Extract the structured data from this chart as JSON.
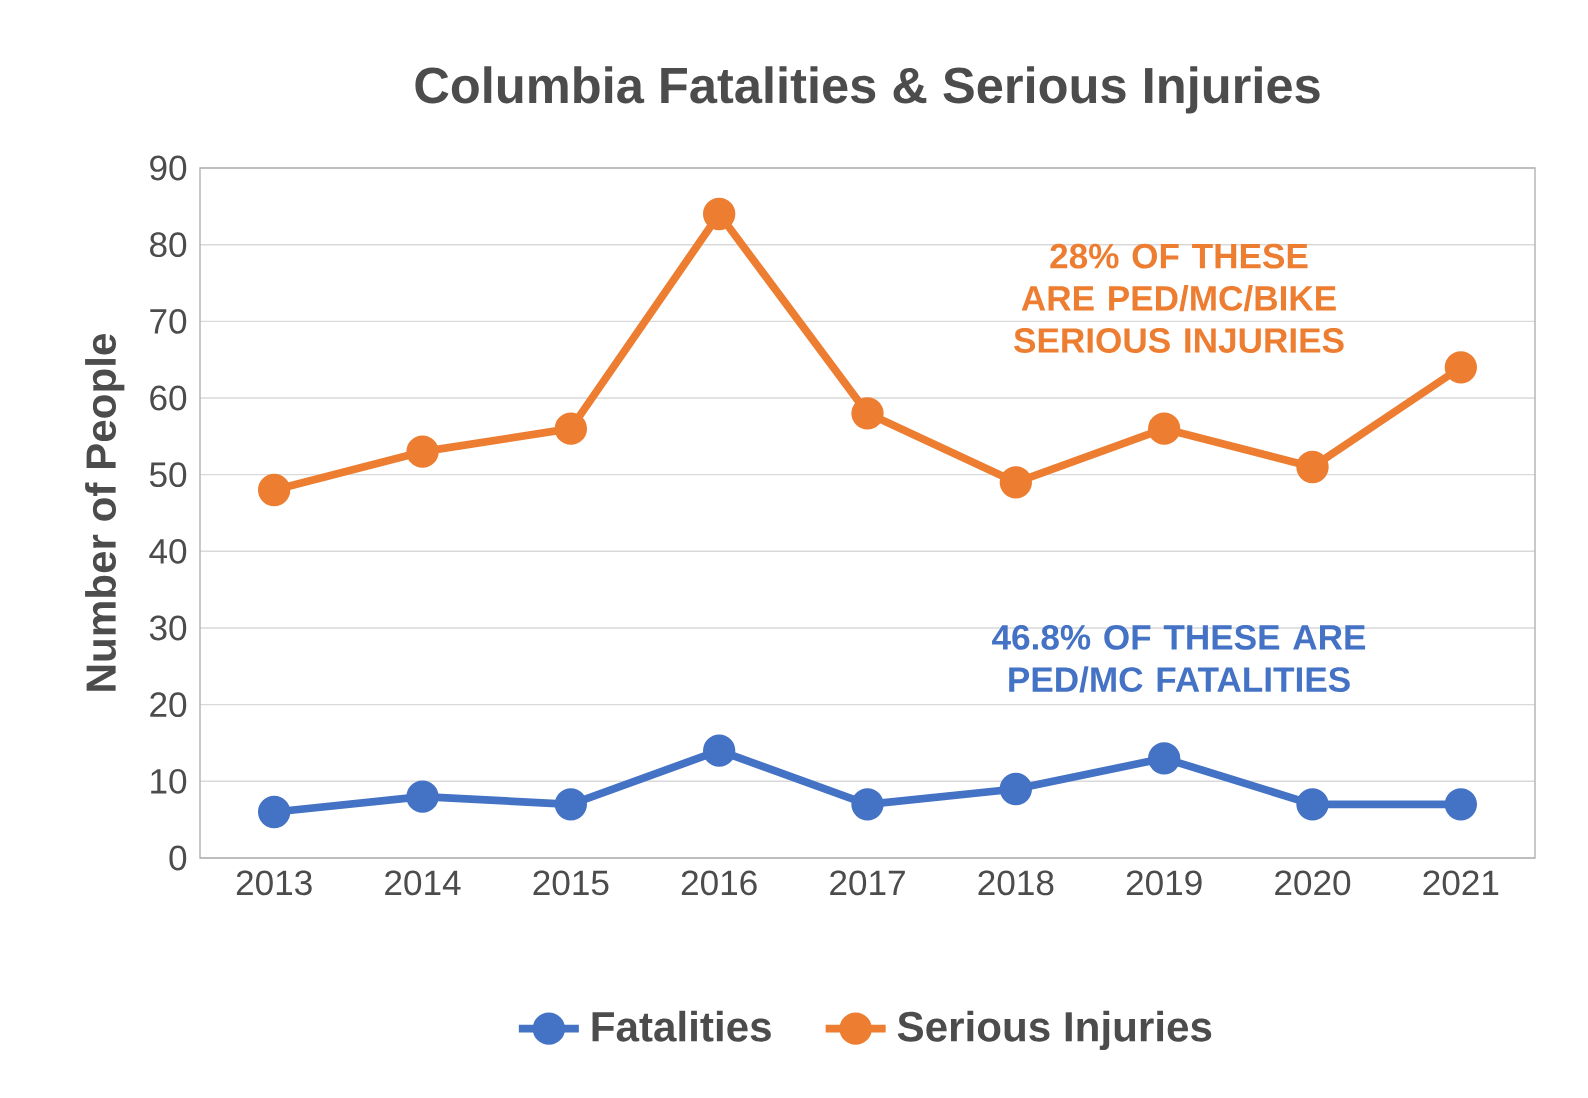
{
  "chart_data": {
    "type": "line",
    "title": "Columbia Fatalities & Serious Injuries",
    "ylabel": "Number of People",
    "categories": [
      "2013",
      "2014",
      "2015",
      "2016",
      "2017",
      "2018",
      "2019",
      "2020",
      "2021"
    ],
    "series": [
      {
        "name": "Fatalities",
        "color": "#4472c4",
        "values": [
          6,
          8,
          7,
          14,
          7,
          9,
          13,
          7,
          7
        ]
      },
      {
        "name": "Serious Injuries",
        "color": "#ed7d31",
        "values": [
          48,
          53,
          56,
          84,
          58,
          49,
          56,
          51,
          64
        ]
      }
    ],
    "annotations": [
      "28% OF THESE ARE PED/MC/BIKE SERIOUS INJURIES",
      "46.8% OF THESE ARE PED/MC FATALITIES"
    ],
    "ylim": [
      0,
      90
    ],
    "yticks": [
      0,
      10,
      20,
      30,
      40,
      50,
      60,
      70,
      80,
      90
    ],
    "grid": "y",
    "legend": "bottom",
    "marker": "circle",
    "line_style": "solid"
  }
}
